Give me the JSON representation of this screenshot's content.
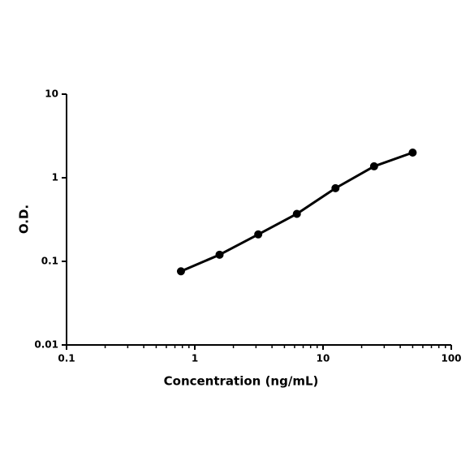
{
  "chart_data": {
    "type": "line",
    "x_label": "Concentration (ng/mL)",
    "y_label": "O.D.",
    "x": [
      0.78,
      1.56,
      3.125,
      6.25,
      12.5,
      25,
      50
    ],
    "series": [
      {
        "color": "#000000",
        "values": [
          0.076,
          0.12,
          0.21,
          0.37,
          0.75,
          1.37,
          2.0
        ]
      }
    ],
    "xlim": [
      0.1,
      100
    ],
    "xticks": [
      0.1,
      1,
      10,
      100
    ],
    "ylim": [
      0.01,
      10
    ],
    "yticks": [
      0.01,
      0.1,
      1,
      10
    ],
    "xscale": "log",
    "yscale": "log",
    "grid": false
  }
}
